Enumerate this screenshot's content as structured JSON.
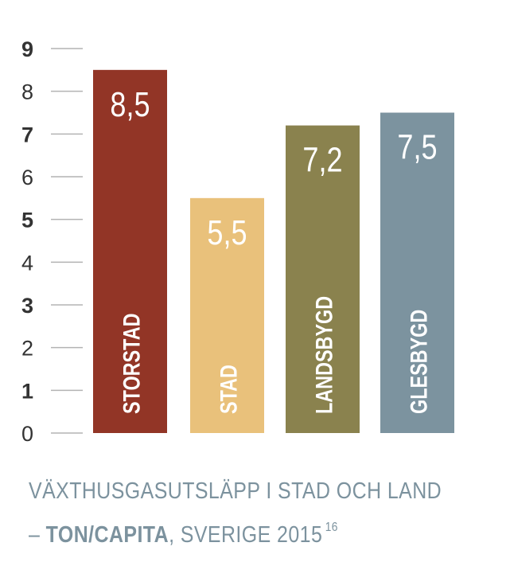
{
  "chart_data": {
    "type": "bar",
    "categories": [
      "STORSTAD",
      "STAD",
      "LANDSBYGD",
      "GLESBYGD"
    ],
    "values": [
      8.5,
      5.5,
      7.2,
      7.5
    ],
    "value_labels": [
      "8,5",
      "5,5",
      "7,2",
      "7,5"
    ],
    "colors": [
      "#923526",
      "#e9c17b",
      "#8a824e",
      "#7c939f"
    ],
    "ylim": [
      0,
      9
    ],
    "yticks": [
      {
        "value": 9,
        "label": "9",
        "bold": true
      },
      {
        "value": 8,
        "label": "8",
        "bold": false
      },
      {
        "value": 7,
        "label": "7",
        "bold": true
      },
      {
        "value": 6,
        "label": "6",
        "bold": false
      },
      {
        "value": 5,
        "label": "5",
        "bold": true
      },
      {
        "value": 4,
        "label": "4",
        "bold": false
      },
      {
        "value": 3,
        "label": "3",
        "bold": true
      },
      {
        "value": 2,
        "label": "2",
        "bold": false
      },
      {
        "value": 1,
        "label": "1",
        "bold": true
      },
      {
        "value": 0,
        "label": "0",
        "bold": false
      }
    ],
    "grid": false,
    "xlabel": "",
    "ylabel": ""
  },
  "caption": {
    "line1": "VÄXTHUSGASUTSLÄPP I STAD OCH LAND",
    "line2_prefix": "– ",
    "line2_bold": "TON/CAPITA",
    "line2_suffix": ", SVERIGE 2015",
    "footnote": "16"
  }
}
